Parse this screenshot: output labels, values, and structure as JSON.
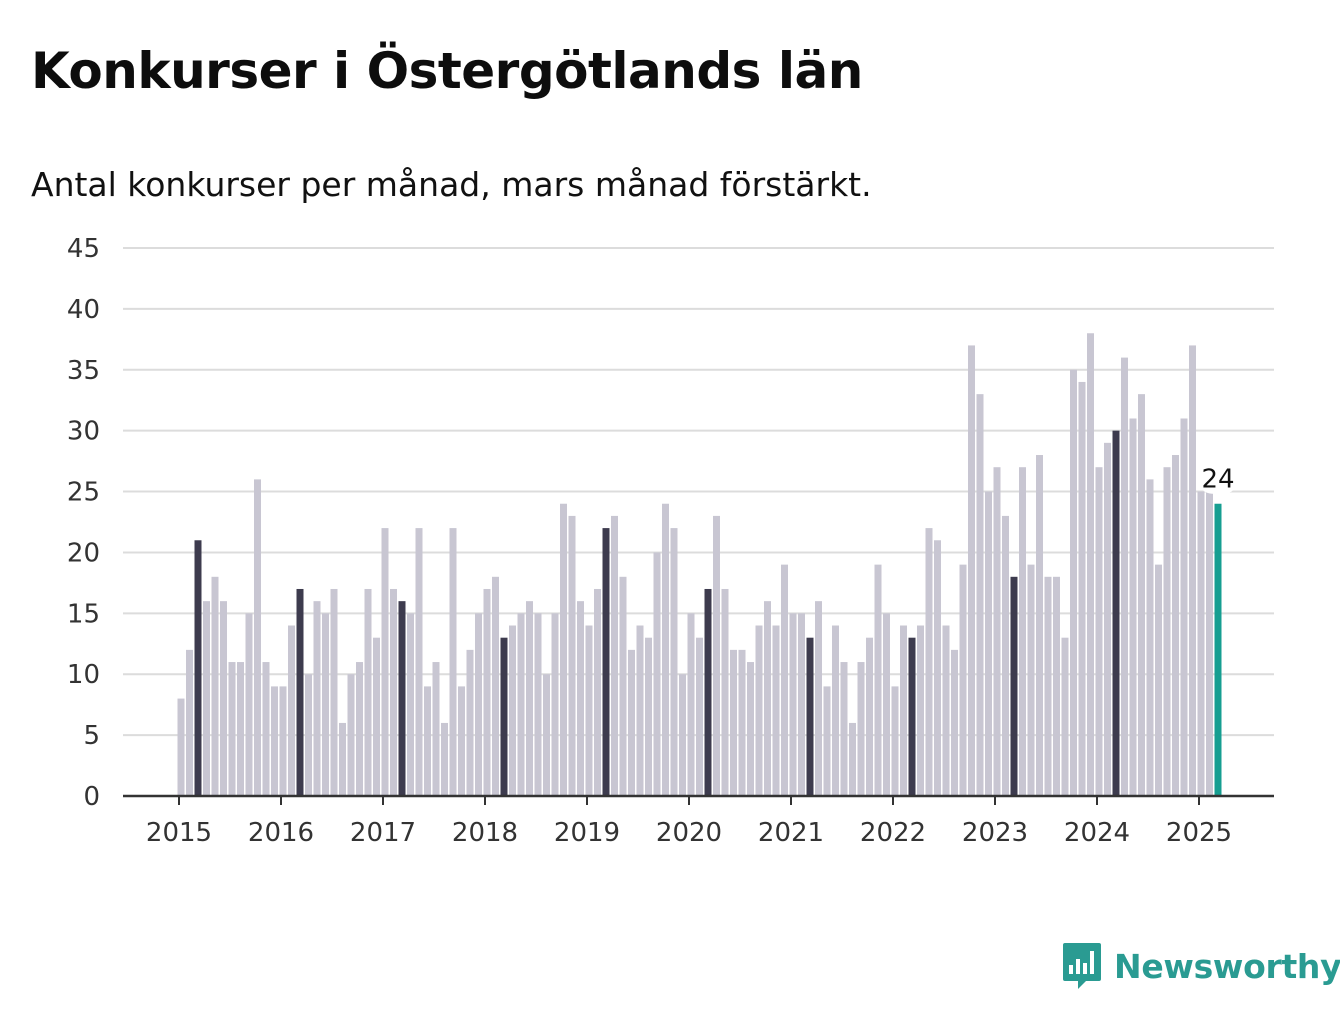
{
  "title": "Konkurser i Östergötlands län",
  "subtitle": "Antal konkurser per månad, mars månad förstärkt.",
  "logo_text": "Newsworthy",
  "colors": {
    "normal_bar": "#c8c6d2",
    "highlight_bar": "#3d3b4e",
    "latest_bar": "#169e91",
    "grid": "#dcdcdc",
    "axis": "#333333",
    "brand": "#2a9b92"
  },
  "chart_data": {
    "type": "bar",
    "title": "Konkurser i Östergötlands län",
    "subtitle": "Antal konkurser per månad, mars månad förstärkt.",
    "xlabel": "",
    "ylabel": "",
    "ylim": [
      0,
      45
    ],
    "yticks": [
      "0",
      "5",
      "10",
      "15",
      "20",
      "25",
      "30",
      "35",
      "40",
      "45"
    ],
    "xticks": [
      "2015",
      "2016",
      "2017",
      "2018",
      "2019",
      "2020",
      "2021",
      "2022",
      "2023",
      "2024",
      "2025"
    ],
    "start_month": "2015-01",
    "highlight_month": "mars",
    "grid": true,
    "values": [
      8,
      12,
      21,
      16,
      18,
      16,
      11,
      11,
      15,
      26,
      11,
      9,
      9,
      14,
      17,
      10,
      16,
      15,
      17,
      6,
      10,
      11,
      17,
      13,
      22,
      17,
      16,
      15,
      22,
      9,
      11,
      6,
      22,
      9,
      12,
      15,
      17,
      18,
      13,
      14,
      15,
      16,
      15,
      10,
      15,
      24,
      23,
      16,
      14,
      17,
      22,
      23,
      18,
      12,
      14,
      13,
      20,
      24,
      22,
      10,
      15,
      13,
      17,
      23,
      17,
      12,
      12,
      11,
      14,
      16,
      14,
      19,
      15,
      15,
      13,
      16,
      9,
      14,
      11,
      6,
      11,
      13,
      19,
      15,
      9,
      14,
      13,
      14,
      22,
      21,
      14,
      12,
      19,
      37,
      33,
      25,
      27,
      23,
      18,
      27,
      19,
      28,
      18,
      18,
      13,
      35,
      34,
      38,
      27,
      29,
      30,
      36,
      31,
      33,
      26,
      19,
      27,
      28,
      31,
      37,
      25,
      25,
      24
    ],
    "annotations": [
      {
        "label": "24",
        "index": 122
      }
    ]
  }
}
